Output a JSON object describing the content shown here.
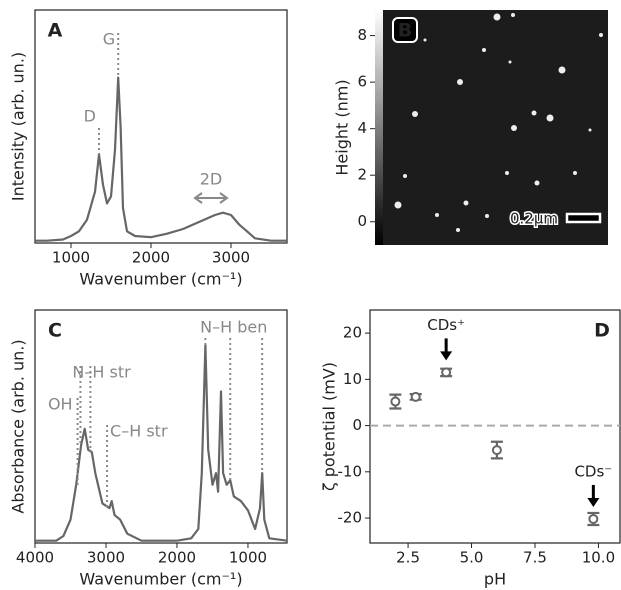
{
  "chart_data": [
    {
      "type": "line",
      "panel_label": "A",
      "xlabel": "Wavenumber (cm⁻¹)",
      "ylabel": "Intensity (arb. un.)",
      "color": "#666666",
      "xlim": [
        550,
        3700
      ],
      "ylim": [
        0,
        1
      ],
      "xticks": [
        1000,
        2000,
        3000
      ],
      "x": [
        550,
        700,
        900,
        1000,
        1100,
        1200,
        1300,
        1350,
        1400,
        1450,
        1500,
        1550,
        1590,
        1620,
        1650,
        1700,
        1800,
        2000,
        2200,
        2400,
        2600,
        2800,
        2900,
        3000,
        3100,
        3200,
        3300,
        3500,
        3700
      ],
      "values": [
        0.01,
        0.01,
        0.015,
        0.03,
        0.05,
        0.1,
        0.22,
        0.38,
        0.25,
        0.17,
        0.2,
        0.4,
        0.71,
        0.5,
        0.15,
        0.05,
        0.03,
        0.025,
        0.04,
        0.06,
        0.09,
        0.12,
        0.13,
        0.12,
        0.08,
        0.05,
        0.02,
        0.01,
        0.01
      ],
      "annotations": [
        {
          "text": "D",
          "x": [
            1350
          ]
        },
        {
          "text": "G",
          "x": [
            1590
          ]
        },
        {
          "text": "2D",
          "x": [
            2550,
            2950
          ],
          "arrow": true
        }
      ]
    },
    {
      "type": "image",
      "panel_label": "B",
      "ylabel": "Height (nm)",
      "ylim": [
        -1,
        9.1
      ],
      "yticks": [
        0,
        2,
        4,
        6,
        8
      ],
      "scale_bar": "0.2μm"
    },
    {
      "type": "line",
      "panel_label": "C",
      "xlabel": "Wavenumber (cm⁻¹)",
      "ylabel": "Absorbance (arb. un.)",
      "color": "#666666",
      "xlim": [
        4000,
        450
      ],
      "ylim": [
        0,
        1
      ],
      "xticks": [
        4000,
        3000,
        2000,
        1000
      ],
      "x": [
        4000,
        3700,
        3600,
        3500,
        3420,
        3350,
        3300,
        3250,
        3200,
        3150,
        3050,
        2950,
        2920,
        2880,
        2800,
        2700,
        2500,
        2000,
        1800,
        1700,
        1650,
        1600,
        1560,
        1500,
        1450,
        1420,
        1380,
        1350,
        1300,
        1250,
        1200,
        1100,
        1000,
        900,
        830,
        800,
        770,
        700,
        450
      ],
      "values": [
        0.01,
        0.01,
        0.03,
        0.1,
        0.25,
        0.42,
        0.49,
        0.4,
        0.39,
        0.3,
        0.17,
        0.15,
        0.18,
        0.12,
        0.1,
        0.04,
        0.01,
        0.01,
        0.02,
        0.06,
        0.3,
        0.85,
        0.4,
        0.25,
        0.3,
        0.22,
        0.65,
        0.3,
        0.25,
        0.27,
        0.2,
        0.18,
        0.14,
        0.06,
        0.15,
        0.3,
        0.1,
        0.02,
        0.01
      ],
      "annotations": [
        {
          "text": "OH",
          "x": [
            3400
          ]
        },
        {
          "text": "N–H str",
          "x": [
            3360,
            3220
          ]
        },
        {
          "text": "C–H str",
          "x": [
            2985
          ]
        },
        {
          "text": "N–H ben",
          "x": [
            1600,
            1250,
            800
          ]
        }
      ]
    },
    {
      "type": "errorbar",
      "panel_label": "D",
      "xlabel": "pH",
      "ylabel": "ζ potential (mV)",
      "color": "#666666",
      "xlim": [
        1,
        10.85
      ],
      "ylim": [
        -25.4,
        25
      ],
      "xticks": [
        2.5,
        {
          "value": 5,
          "label": "5.0"
        },
        7.5,
        {
          "value": 10,
          "label": "10.0"
        }
      ],
      "yticks": [
        -20,
        -10,
        0,
        10,
        20
      ],
      "hline": 0,
      "x": [
        2,
        2.8,
        4,
        6,
        9.8
      ],
      "values": [
        5.2,
        6.2,
        11.5,
        -5.3,
        -20.2
      ],
      "errors": [
        1.5,
        0.6,
        0.8,
        1.8,
        1.3
      ],
      "annotations": [
        {
          "text": "CDs⁺",
          "point": 2
        },
        {
          "text": "CDs⁻",
          "point": 4
        }
      ]
    }
  ]
}
